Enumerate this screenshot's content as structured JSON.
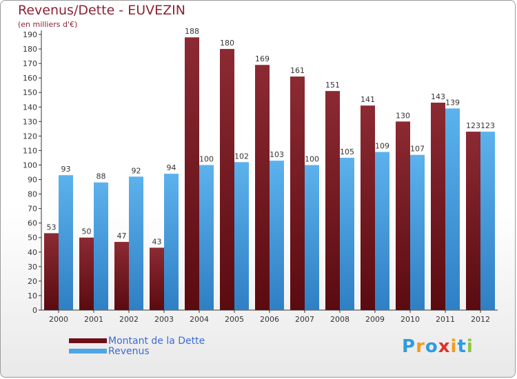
{
  "title": "Revenus/Dette - EUVEZIN",
  "subtitle": "(en milliers d'€)",
  "brand": {
    "text": "Proxiti",
    "letters": [
      "P",
      "r",
      "o",
      "x",
      "i",
      "t",
      "i"
    ],
    "letter_colors": [
      "#2e9be0",
      "#f29b1f",
      "#2e9be0",
      "#e0312b",
      "#f29b1f",
      "#2e9be0",
      "#8cc63f"
    ]
  },
  "colors": {
    "dette": "#7a1a22",
    "revenus": "#4ea6e4",
    "title": "#8b2332",
    "legend_text": "#3d6ad6"
  },
  "chart_data": {
    "type": "bar",
    "title": "Revenus/Dette - EUVEZIN",
    "subtitle": "(en milliers d'€)",
    "categories": [
      "2000",
      "2001",
      "2002",
      "2003",
      "2004",
      "2005",
      "2006",
      "2007",
      "2008",
      "2009",
      "2010",
      "2011",
      "2012"
    ],
    "series": [
      {
        "name": "Montant de la Dette",
        "values": [
          53,
          50,
          47,
          43,
          188,
          180,
          169,
          161,
          151,
          141,
          130,
          143,
          123
        ]
      },
      {
        "name": "Revenus",
        "values": [
          93,
          88,
          92,
          94,
          100,
          102,
          103,
          100,
          105,
          109,
          107,
          139,
          123
        ]
      }
    ],
    "ylim": [
      0,
      190
    ],
    "ytick_step": 10,
    "grid": false,
    "legend_position": "bottom-left"
  }
}
